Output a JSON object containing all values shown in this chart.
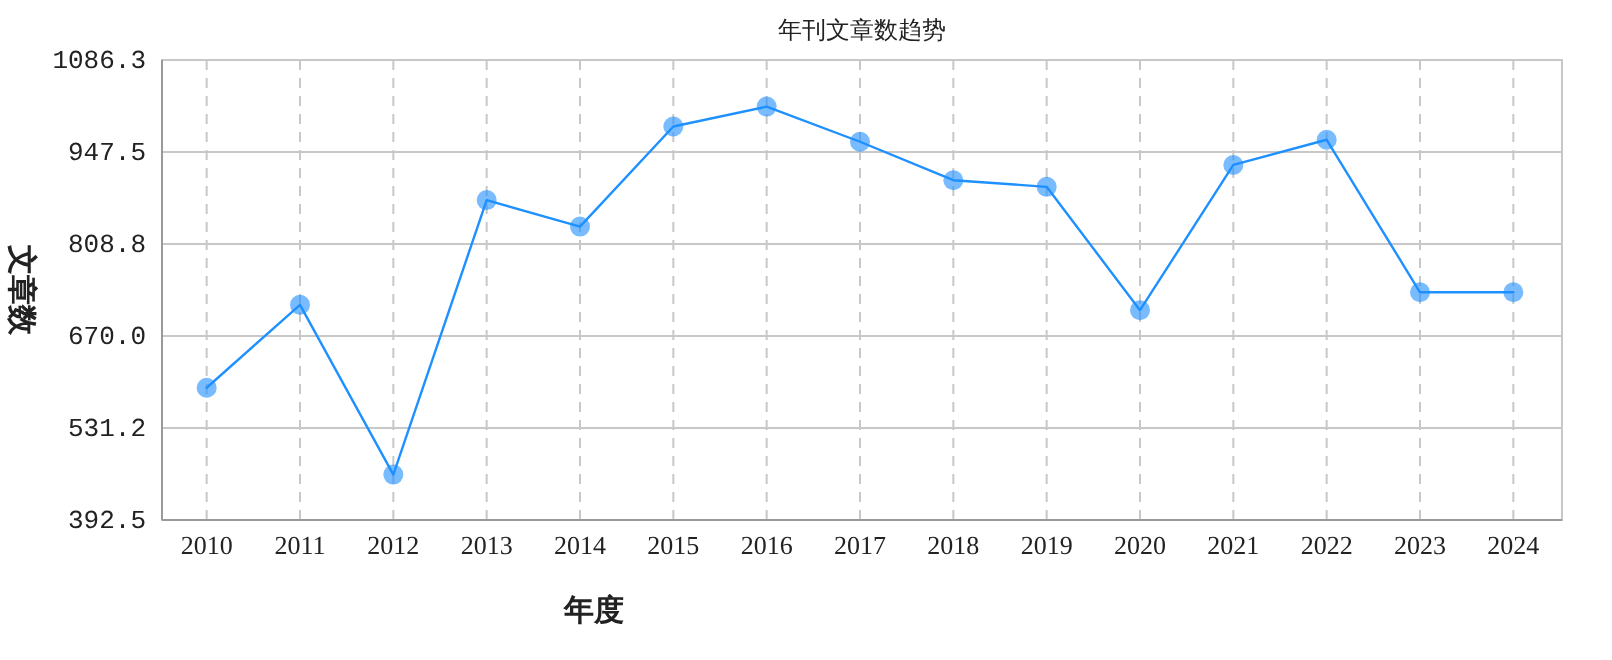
{
  "chart_data": {
    "type": "line",
    "title": "年刊文章数趋势",
    "xlabel": "年度",
    "ylabel": "文章数",
    "categories": [
      "2010",
      "2011",
      "2012",
      "2013",
      "2014",
      "2015",
      "2016",
      "2017",
      "2018",
      "2019",
      "2020",
      "2021",
      "2022",
      "2023",
      "2024"
    ],
    "series": [
      {
        "color": "#1e90ff",
        "values": [
          592,
          717,
          461,
          875,
          835,
          986,
          1016,
          963,
          905,
          895,
          709,
          928,
          966,
          736,
          736
        ]
      }
    ],
    "marker": "circle",
    "line_style": "solid",
    "grid": true,
    "ylim": [
      392.5,
      1086.3
    ],
    "yticks": [
      392.5,
      531.2,
      {
        "value": 670,
        "label": "670.0"
      },
      808.8,
      947.5,
      1086.3
    ]
  }
}
